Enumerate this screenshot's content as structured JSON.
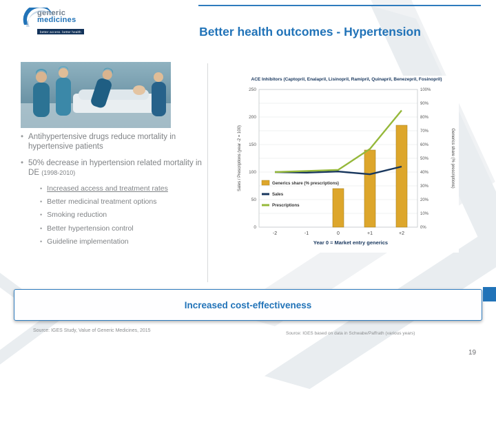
{
  "slide": {
    "title": "Better health outcomes - Hypertension",
    "page_number": "19"
  },
  "logo": {
    "name_line1": "generic",
    "name_line2": "medicines",
    "tagline": "better access. better health"
  },
  "bullets": {
    "b1": "Antihypertensive drugs reduce mortality in hypertensive patients",
    "b2": "50% decrease in hypertension related mortality in DE",
    "b2_note": "(1998-2010)",
    "sub": [
      "Increased access and treatment rates",
      "Better medicinal treatment options",
      "Smoking reduction",
      "Better hypertension control",
      "Guideline implementation"
    ]
  },
  "banner": {
    "text": "Increased cost-effectiveness"
  },
  "footer": {
    "source_left": "Source: IGES Study, Value of Generic Medicines, 2015",
    "source_right": "Source: IGES based on data in Schwabe/Paffrath (various years)"
  },
  "colors": {
    "accent_blue": "#2173b8",
    "navy": "#17365d",
    "gold": "#dda62b",
    "green": "#95b83a",
    "text_gray": "#7f8285"
  },
  "chart_data": {
    "type": "bar",
    "title": "ACE Inhibitors (Captopril, Enalapril, Lisinopril, Ramipril, Quinapril, Benezepril, Fosinopril)",
    "categories": [
      "-2",
      "-1",
      "0",
      "+1",
      "+2"
    ],
    "series": [
      {
        "name": "Generics share (% prescriptions)",
        "type": "bar",
        "axis": "right",
        "color": "#dda62b",
        "values": [
          0,
          0,
          28,
          56,
          74
        ]
      },
      {
        "name": "Sales",
        "type": "line",
        "axis": "left",
        "color": "#17365d",
        "values": [
          100,
          99,
          101,
          96,
          110
        ]
      },
      {
        "name": "Prescriptions",
        "type": "line",
        "axis": "left",
        "color": "#95b83a",
        "values": [
          100,
          102,
          104,
          142,
          212
        ]
      }
    ],
    "left_axis": {
      "label": "Sales / Prescriptions (year -2 = 100)",
      "min": 0,
      "max": 250,
      "ticks": [
        0,
        50,
        100,
        150,
        200,
        250
      ]
    },
    "right_axis": {
      "label": "Generics share (% prescriptions)",
      "min": 0,
      "max": 100,
      "ticks": [
        "0%",
        "10%",
        "20%",
        "30%",
        "40%",
        "50%",
        "60%",
        "70%",
        "80%",
        "90%",
        "100%"
      ]
    },
    "x_note": "Year 0 = Market entry generics",
    "legend_position": "inside-left",
    "grid": true
  }
}
